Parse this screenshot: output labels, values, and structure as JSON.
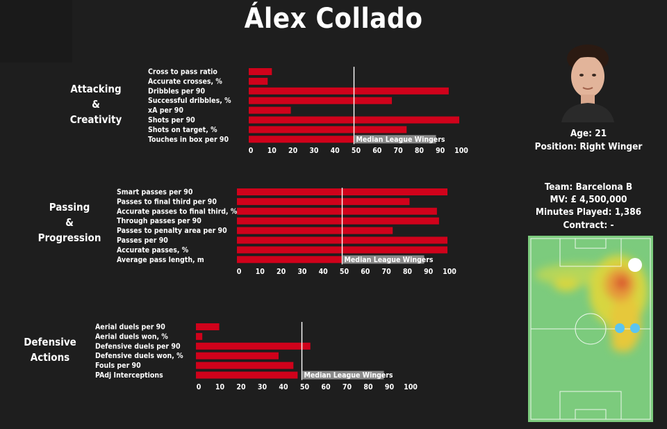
{
  "player": {
    "name": "Álex Collado",
    "age_line": "Age: 21",
    "position_line": "Position: Right Winger",
    "team_line": "Team: Barcelona B",
    "mv_line": "MV: £ 4,500,000",
    "minutes_line": "Minutes Played: 1,386",
    "contract_line": "Contract: -"
  },
  "colors": {
    "bar": "#d0021b",
    "background": "#1e1e1e",
    "median_line": "#ffffff",
    "median_label_bg": "#8a8a8a",
    "pitch": "#7ccb7d"
  },
  "chart_data": [
    {
      "type": "bar",
      "orientation": "horizontal",
      "section_label": [
        "Attacking",
        "&",
        "Creativity"
      ],
      "categories": [
        "Cross to pass ratio",
        "Accurate crosses, %",
        "Dribbles per 90",
        "Successful dribbles, %",
        "xA per 90",
        "Shots per 90",
        "Shots on target, %",
        "Touches in box per 90"
      ],
      "values": [
        11,
        9,
        95,
        68,
        20,
        100,
        75,
        50
      ],
      "xlim": [
        0,
        100
      ],
      "xticks": [
        0,
        10,
        20,
        30,
        40,
        50,
        60,
        70,
        80,
        90,
        100
      ],
      "median": 50,
      "median_label": "Median League Wingers"
    },
    {
      "type": "bar",
      "orientation": "horizontal",
      "section_label": [
        "Passing",
        "&",
        "Progression"
      ],
      "categories": [
        "Smart passes per 90",
        "Passes to final third per 90",
        "Accurate passes to final third, %",
        "Through passes per 90",
        "Passes to penalty area per 90",
        "Passes per 90",
        "Accurate passes, %",
        "Average pass length, m"
      ],
      "values": [
        100,
        82,
        95,
        96,
        74,
        100,
        100,
        50
      ],
      "xlim": [
        0,
        100
      ],
      "xticks": [
        0,
        10,
        20,
        30,
        40,
        50,
        60,
        70,
        80,
        90,
        100
      ],
      "median": 50,
      "median_label": "Median League Wingers"
    },
    {
      "type": "bar",
      "orientation": "horizontal",
      "section_label": [
        "Defensive",
        "Actions"
      ],
      "categories": [
        "Aerial duels per 90",
        "Aerial duels won, %",
        "Defensive duels per 90",
        "Defensive duels won, %",
        "Fouls per 90",
        "PAdj Interceptions"
      ],
      "values": [
        11,
        3,
        54,
        39,
        46,
        48
      ],
      "xlim": [
        0,
        100
      ],
      "xticks": [
        0,
        10,
        20,
        30,
        40,
        50,
        60,
        70,
        80,
        90,
        100
      ],
      "median": 50,
      "median_label": "Median League Wingers"
    }
  ]
}
